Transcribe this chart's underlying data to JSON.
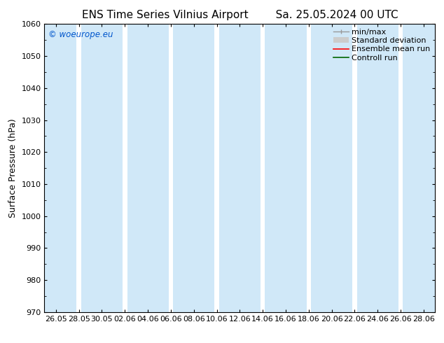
{
  "title_left": "ENS Time Series Vilnius Airport",
  "title_right": "Sa. 25.05.2024 00 UTC",
  "ylabel": "Surface Pressure (hPa)",
  "ylim": [
    970,
    1060
  ],
  "yticks": [
    970,
    980,
    990,
    1000,
    1010,
    1020,
    1030,
    1040,
    1050,
    1060
  ],
  "xlabel_ticks": [
    "26.05",
    "28.05",
    "30.05",
    "02.06",
    "04.06",
    "06.06",
    "08.06",
    "10.06",
    "12.06",
    "14.06",
    "16.06",
    "18.06",
    "20.06",
    "22.06",
    "24.06",
    "26.06",
    "28.06"
  ],
  "watermark": "© woeurope.eu",
  "watermark_color": "#0055cc",
  "background_color": "#ffffff",
  "plot_bg_color": "#ffffff",
  "band_color": "#d0e8f8",
  "band_alpha": 1.0,
  "legend_labels": [
    "min/max",
    "Standard deviation",
    "Ensemble mean run",
    "Controll run"
  ],
  "minmax_color": "#999999",
  "std_color": "#cccccc",
  "mean_color": "#ff0000",
  "control_color": "#006600",
  "font_color": "#000000",
  "title_fontsize": 11,
  "axis_fontsize": 8,
  "ylabel_fontsize": 9,
  "legend_fontsize": 8
}
